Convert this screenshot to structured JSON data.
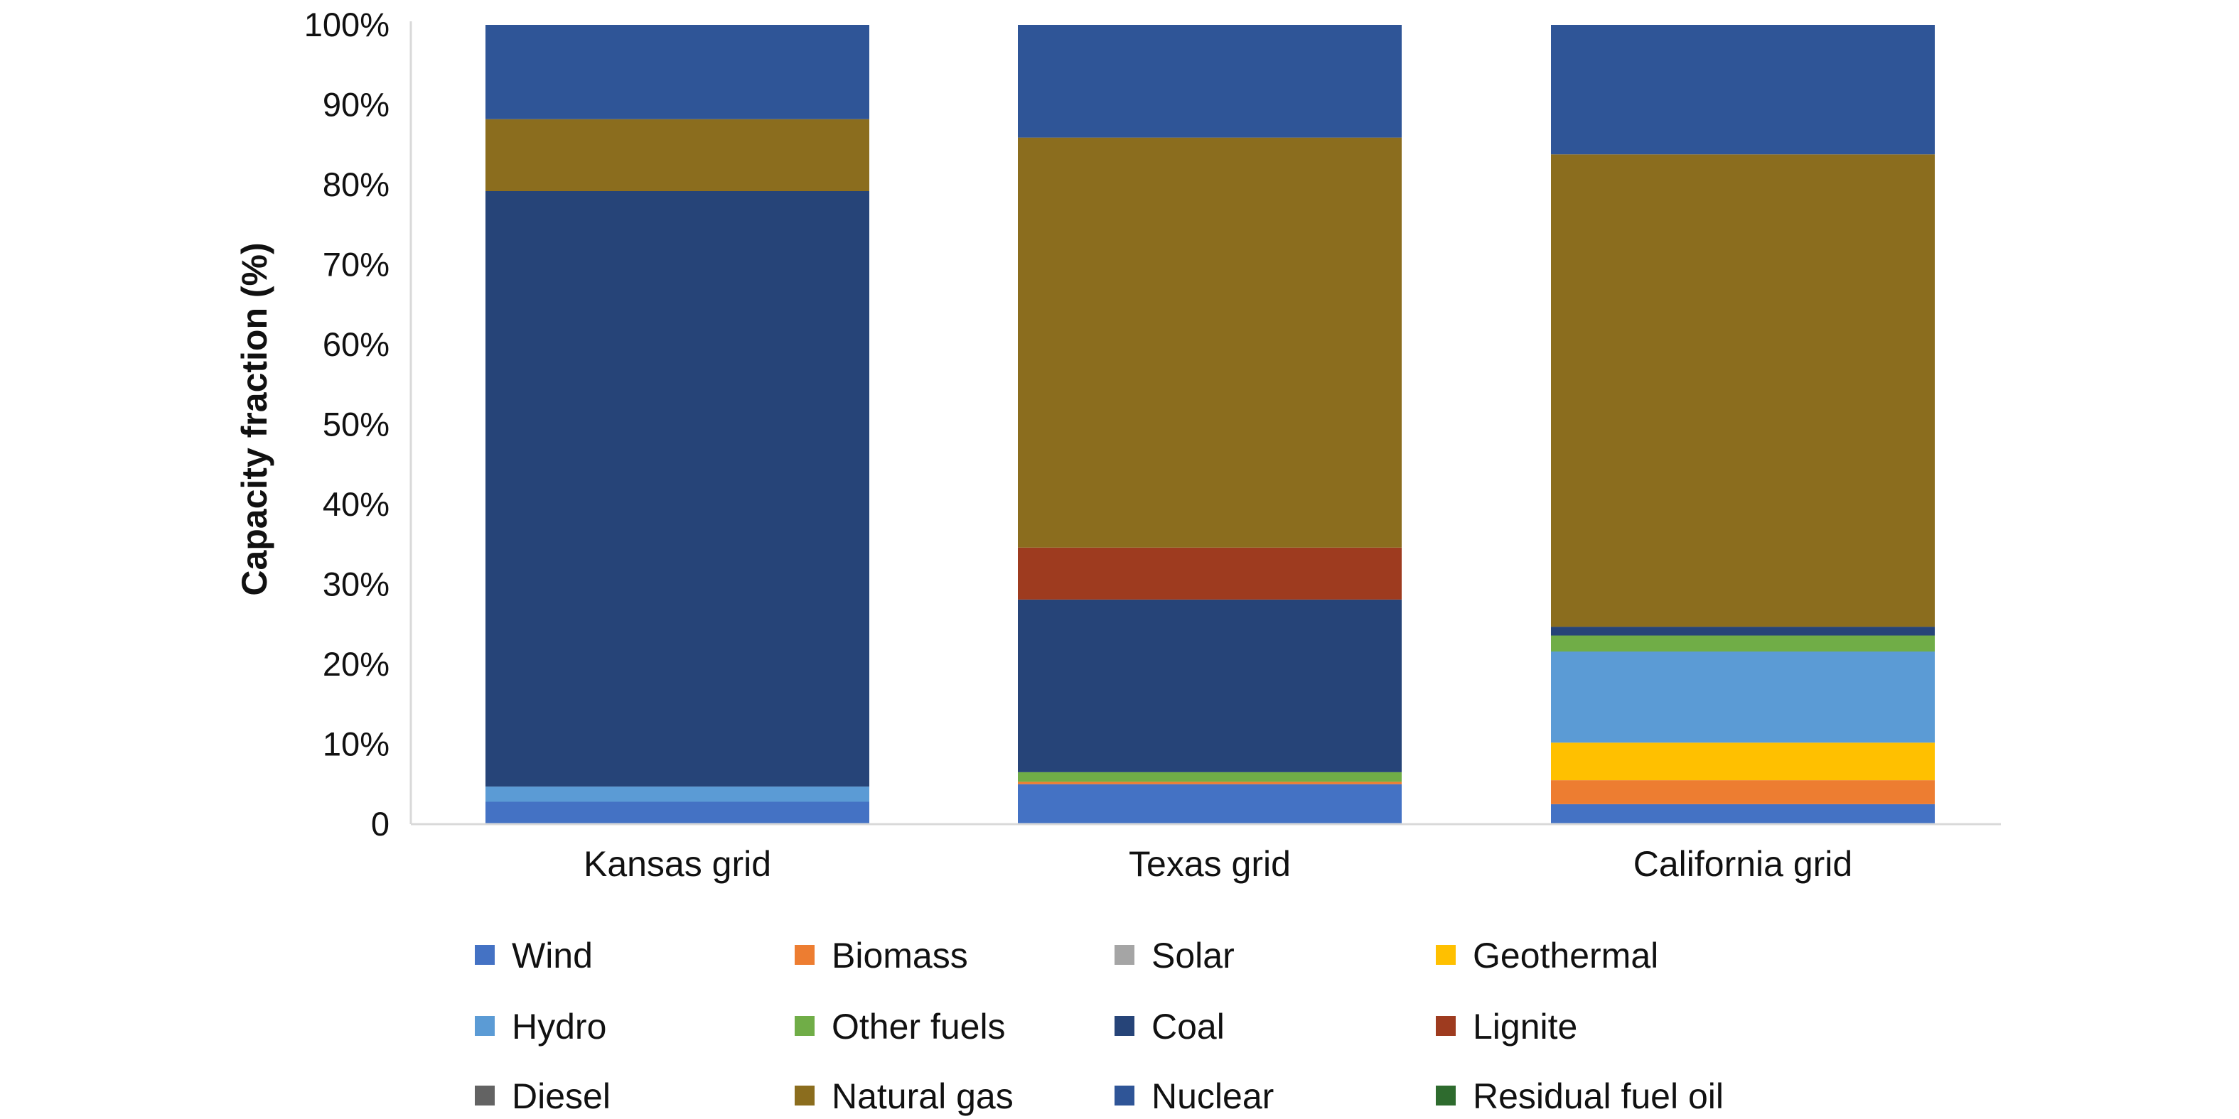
{
  "chart_data": {
    "type": "bar",
    "stacked": true,
    "title": "",
    "xlabel": "",
    "ylabel": "Capacity fraction (%)",
    "ylim": [
      0,
      100
    ],
    "yticks": [
      "0",
      "10%",
      "20%",
      "30%",
      "40%",
      "50%",
      "60%",
      "70%",
      "80%",
      "90%",
      "100%"
    ],
    "categories": [
      "Kansas grid",
      "Texas grid",
      "California grid"
    ],
    "legend_position": "bottom",
    "series": [
      {
        "name": "Wind",
        "color": "#4472c4",
        "values": [
          2.8,
          5.0,
          2.5
        ]
      },
      {
        "name": "Biomass",
        "color": "#ed7d31",
        "values": [
          0.0,
          0.3,
          3.0
        ]
      },
      {
        "name": "Solar",
        "color": "#a5a5a5",
        "values": [
          0.0,
          0.0,
          0.0
        ]
      },
      {
        "name": "Geothermal",
        "color": "#ffc000",
        "values": [
          0.0,
          0.0,
          4.7
        ]
      },
      {
        "name": "Hydro",
        "color": "#5b9bd5",
        "values": [
          1.9,
          0.0,
          11.4
        ]
      },
      {
        "name": "Other fuels",
        "color": "#70ad47",
        "values": [
          0.0,
          1.2,
          2.0
        ]
      },
      {
        "name": "Coal",
        "color": "#264478",
        "values": [
          74.5,
          21.6,
          1.1
        ]
      },
      {
        "name": "Lignite",
        "color": "#9e3b1f",
        "values": [
          0.0,
          6.5,
          0.0
        ]
      },
      {
        "name": "Diesel",
        "color": "#636363",
        "values": [
          0.0,
          0.0,
          0.0
        ]
      },
      {
        "name": "Natural gas",
        "color": "#8b6d1e",
        "values": [
          9.0,
          51.3,
          59.1
        ]
      },
      {
        "name": "Nuclear",
        "color": "#2f5597",
        "values": [
          11.8,
          14.1,
          16.2
        ]
      },
      {
        "name": "Residual fuel oil",
        "color": "#2e6b2e",
        "values": [
          0.0,
          0.0,
          0.0
        ]
      }
    ]
  }
}
